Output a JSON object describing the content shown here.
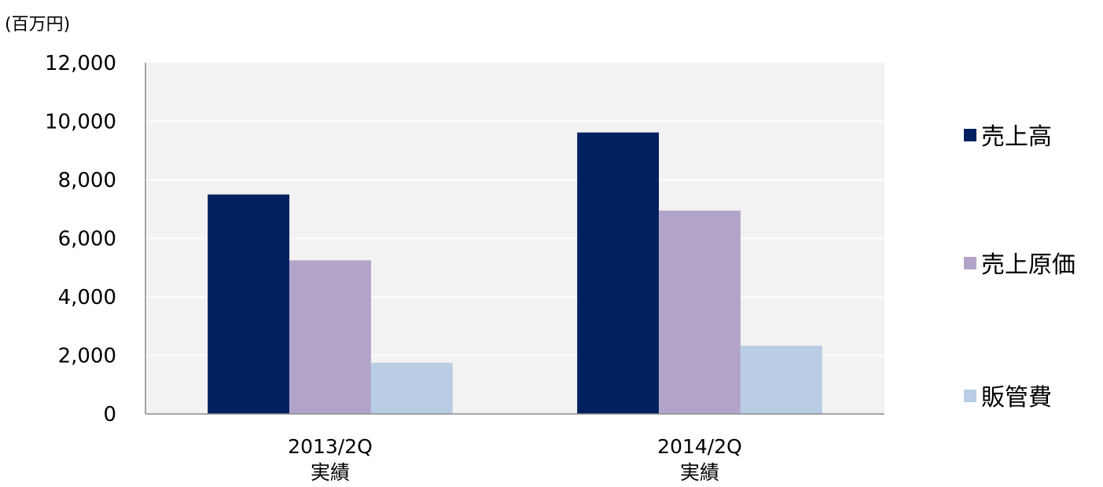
{
  "chart_data": {
    "type": "bar",
    "unit_label": "(百万円)",
    "categories": [
      [
        "2013/2Q",
        "実績"
      ],
      [
        "2014/2Q",
        "実績"
      ]
    ],
    "series": [
      {
        "name": "売上高",
        "color": "#00205f",
        "values": [
          7500,
          9620
        ]
      },
      {
        "name": "売上原価",
        "color": "#b2a4c8",
        "values": [
          5250,
          6950
        ]
      },
      {
        "name": "販管費",
        "color": "#b9cde4",
        "values": [
          1750,
          2330
        ]
      }
    ],
    "yticks": [
      "0",
      "2,000",
      "4,000",
      "6,000",
      "8,000",
      "10,000",
      "12,000"
    ],
    "ylim": [
      0,
      12000
    ],
    "grid": true,
    "legend_position": "right",
    "plot_background": "#f2f2f2"
  }
}
